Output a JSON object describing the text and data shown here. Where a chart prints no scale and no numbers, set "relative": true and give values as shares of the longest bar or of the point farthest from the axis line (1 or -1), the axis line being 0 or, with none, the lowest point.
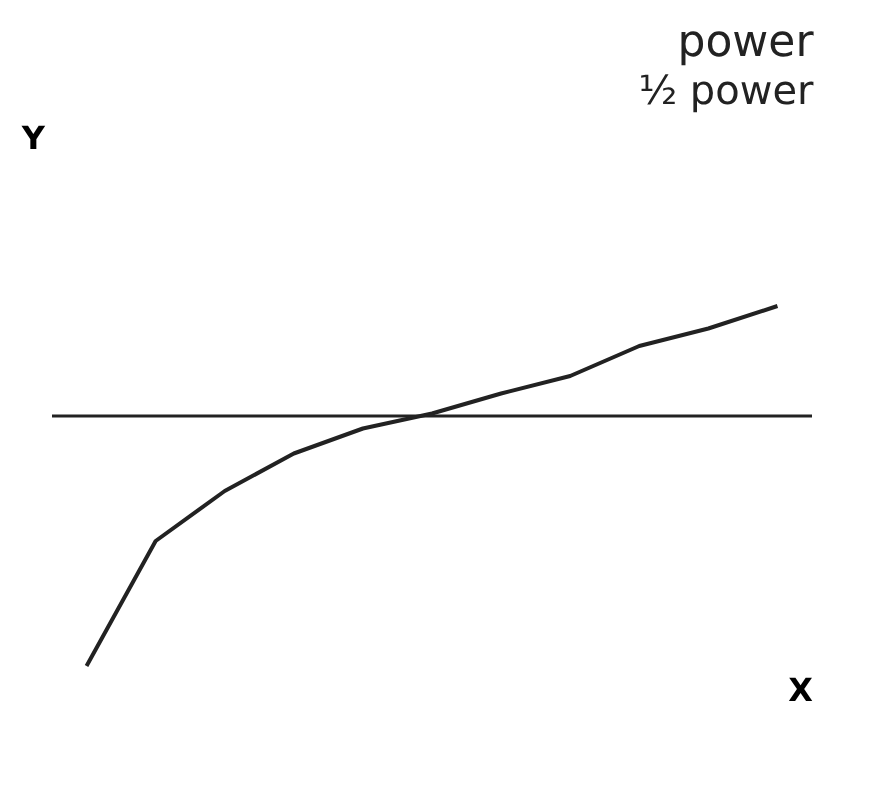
{
  "chart_data": {
    "type": "line",
    "title": "power",
    "subtitle": "½ power",
    "xlabel": "X",
    "ylabel": "Y",
    "relative": true,
    "categories": [
      null,
      null,
      null,
      null,
      null,
      null,
      null,
      null,
      null,
      null,
      null
    ],
    "series": [
      {
        "color": "#222222",
        "values": [
          -1,
          -0.5,
          -0.3,
          -0.15,
          -0.05,
          0.01,
          0.09,
          0.16,
          0.28,
          0.35,
          0.44
        ]
      }
    ]
  }
}
